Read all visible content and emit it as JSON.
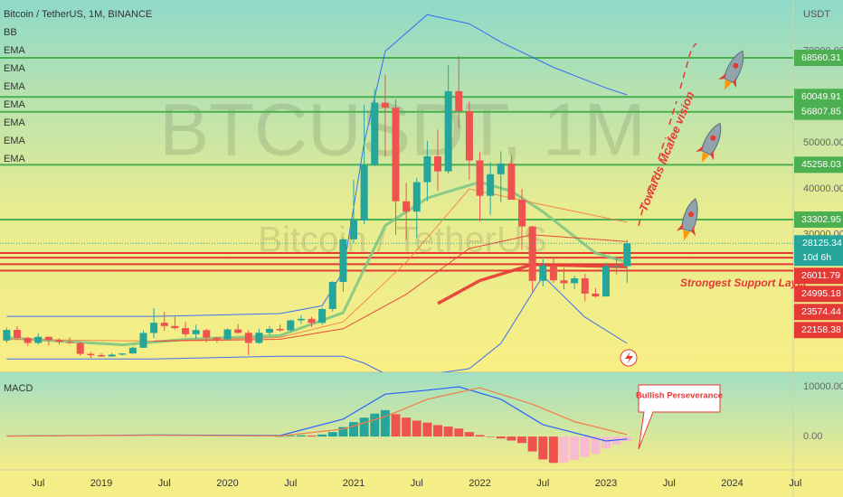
{
  "chart_data": [
    {
      "type": "candlestick",
      "title": "Bitcoin / TetherUS, 1M, BINANCE",
      "legend": [
        "BB",
        "EMA",
        "EMA",
        "EMA",
        "EMA",
        "EMA",
        "EMA",
        "EMA"
      ],
      "watermark": [
        "BTCUSDT, 1M",
        "Bitcoin / TetherUS"
      ],
      "y_unit": "USDT",
      "up_color": "#26a69a",
      "down_color": "#ef5350",
      "x": [
        "2018-04",
        "2018-05",
        "2018-06",
        "2018-07",
        "2018-08",
        "2018-09",
        "2018-10",
        "2018-11",
        "2018-12",
        "2019-01",
        "2019-02",
        "2019-03",
        "2019-04",
        "2019-05",
        "2019-06",
        "2019-07",
        "2019-08",
        "2019-09",
        "2019-10",
        "2019-11",
        "2019-12",
        "2020-01",
        "2020-02",
        "2020-03",
        "2020-04",
        "2020-05",
        "2020-06",
        "2020-07",
        "2020-08",
        "2020-09",
        "2020-10",
        "2020-11",
        "2020-12",
        "2021-01",
        "2021-02",
        "2021-03",
        "2021-04",
        "2021-05",
        "2021-06",
        "2021-07",
        "2021-08",
        "2021-09",
        "2021-10",
        "2021-11",
        "2021-12",
        "2022-01",
        "2022-02",
        "2022-03",
        "2022-04",
        "2022-05",
        "2022-06",
        "2022-07",
        "2022-08",
        "2022-09",
        "2022-10",
        "2022-11",
        "2022-12",
        "2023-01",
        "2023-02",
        "2023-03"
      ],
      "open": [
        6926,
        9245,
        7494,
        6391,
        7729,
        7033,
        6625,
        6371,
        4017,
        3742,
        3457,
        3854,
        4105,
        5350,
        8574,
        10817,
        10085,
        9631,
        8294,
        9199,
        7546,
        7193,
        9350,
        8600,
        6410,
        8625,
        9450,
        9140,
        11335,
        11650,
        10776,
        13800,
        19700,
        28990,
        33100,
        45240,
        58800,
        57700,
        37300,
        35040,
        41460,
        47100,
        43820,
        61300,
        56950,
        46200,
        38480,
        43190,
        45530,
        37630,
        31800,
        19940,
        23290,
        20050,
        19430,
        20490,
        17160,
        16540,
        23120,
        23140
      ],
      "high": [
        9745,
        10020,
        7780,
        8507,
        7760,
        7410,
        7680,
        6600,
        4410,
        4140,
        4200,
        4140,
        5640,
        9100,
        13970,
        13180,
        12330,
        10950,
        10370,
        9510,
        7750,
        9580,
        10500,
        9190,
        9470,
        10070,
        10380,
        11450,
        12470,
        12070,
        14100,
        19860,
        29300,
        41950,
        58350,
        61780,
        64850,
        59500,
        41330,
        42400,
        50500,
        52920,
        67000,
        69000,
        59050,
        47990,
        45820,
        48190,
        47440,
        40050,
        31990,
        24670,
        25210,
        22800,
        21080,
        21480,
        18390,
        23960,
        25250,
        28870
      ],
      "low": [
        6426,
        7035,
        5755,
        6071,
        5880,
        6100,
        6205,
        3652,
        3156,
        3360,
        3350,
        3680,
        4100,
        5330,
        7450,
        9010,
        9320,
        7710,
        7300,
        6515,
        6430,
        6870,
        8440,
        3780,
        6160,
        8110,
        8830,
        8900,
        10520,
        9880,
        10370,
        13200,
        17570,
        28130,
        32300,
        44960,
        47000,
        30000,
        28800,
        29280,
        37330,
        39600,
        43280,
        53250,
        42000,
        32950,
        34320,
        37150,
        37700,
        26700,
        17620,
        18780,
        19520,
        18120,
        18190,
        15480,
        16260,
        16500,
        21350,
        19550
      ],
      "close": [
        9245,
        7494,
        6391,
        7729,
        7033,
        6625,
        6371,
        4017,
        3742,
        3457,
        3854,
        4105,
        5350,
        8574,
        10817,
        10085,
        9631,
        8294,
        9199,
        7546,
        7193,
        9350,
        8600,
        6410,
        8625,
        9450,
        9140,
        11335,
        11650,
        10776,
        13800,
        19700,
        28990,
        33100,
        45240,
        58800,
        57700,
        37300,
        35040,
        41460,
        47100,
        43820,
        61300,
        56950,
        46200,
        38480,
        43190,
        45530,
        37630,
        31800,
        19940,
        23290,
        20050,
        19430,
        20490,
        17160,
        16540,
        23120,
        23140,
        28125
      ],
      "lines": [
        {
          "color": "#2962ff",
          "width": 1,
          "x": [
            "2018-04",
            "2019-06",
            "2020-06",
            "2020-10",
            "2020-12",
            "2021-02",
            "2021-04",
            "2021-08",
            "2021-12",
            "2022-03",
            "2022-08",
            "2023-01",
            "2023-03"
          ],
          "values": [
            12200,
            12200,
            12800,
            14500,
            22000,
            50000,
            70000,
            78000,
            76000,
            72000,
            66500,
            62000,
            60500
          ]
        },
        {
          "color": "#2962ff",
          "width": 1,
          "x": [
            "2018-04",
            "2019-06",
            "2020-06",
            "2020-12",
            "2021-02",
            "2021-05",
            "2021-12",
            "2022-03",
            "2022-07",
            "2022-11",
            "2023-03"
          ],
          "values": [
            2900,
            2900,
            3500,
            3500,
            2000,
            -1500,
            800,
            6300,
            21000,
            12000,
            6300
          ]
        },
        {
          "color": "#81c784",
          "width": 3,
          "x": [
            "2018-04",
            "2019-03",
            "2019-09",
            "2020-06",
            "2020-12",
            "2021-04",
            "2021-08",
            "2022-01",
            "2022-04",
            "2022-07",
            "2022-12",
            "2023-03"
          ],
          "values": [
            7500,
            6000,
            7200,
            8000,
            13000,
            32000,
            38000,
            41500,
            39500,
            35000,
            26000,
            24000
          ]
        },
        {
          "color": "#f57c45",
          "width": 1,
          "x": [
            "2018-04",
            "2019-06",
            "2020-06",
            "2020-12",
            "2021-06",
            "2021-12",
            "2022-06",
            "2023-03"
          ],
          "values": [
            7200,
            6800,
            7600,
            11000,
            24000,
            40000,
            37000,
            32700
          ]
        },
        {
          "color": "#e53935",
          "width": 1,
          "x": [
            "2019-06",
            "2020-06",
            "2020-12",
            "2021-06",
            "2021-12",
            "2022-06",
            "2023-03"
          ],
          "values": [
            6800,
            7200,
            9500,
            17000,
            27000,
            30000,
            28500
          ]
        },
        {
          "color": "#e53935",
          "width": 3.5,
          "x": [
            "2021-09",
            "2022-01",
            "2022-06",
            "2023-03"
          ],
          "values": [
            15000,
            20000,
            23500,
            23000
          ]
        }
      ],
      "xlim": [
        "2018-03",
        "2024-12"
      ],
      "xticks": [
        {
          "value": "2018-07",
          "label": "Jul"
        },
        {
          "value": "2019-01",
          "label": "2019"
        },
        {
          "value": "2019-07",
          "label": "Jul"
        },
        {
          "value": "2020-01",
          "label": "2020"
        },
        {
          "value": "2020-07",
          "label": "Jul"
        },
        {
          "value": "2021-01",
          "label": "2021"
        },
        {
          "value": "2021-07",
          "label": "Jul"
        },
        {
          "value": "2022-01",
          "label": "2022"
        },
        {
          "value": "2022-07",
          "label": "Jul"
        },
        {
          "value": "2023-01",
          "label": "2023"
        },
        {
          "value": "2023-07",
          "label": "Jul"
        },
        {
          "value": "2024-01",
          "label": "2024"
        },
        {
          "value": "2024-07",
          "label": "Jul"
        }
      ],
      "ylim": [
        0,
        80000
      ],
      "yticks": [
        {
          "value": 70000,
          "label": "70000.00"
        },
        {
          "value": 60000,
          "label": "60000.00"
        },
        {
          "value": 50000,
          "label": "50000.00"
        },
        {
          "value": 40000,
          "label": "40000.00"
        },
        {
          "value": 30000,
          "label": "30000.00"
        }
      ],
      "levels": [
        {
          "value": 68560.31,
          "color": "#4caf50"
        },
        {
          "value": 60049.91,
          "color": "#4caf50"
        },
        {
          "value": 56807.85,
          "color": "#4caf50"
        },
        {
          "value": 45258.03,
          "color": "#4caf50"
        },
        {
          "value": 33302.95,
          "color": "#4caf50"
        },
        {
          "value": 26011.79,
          "color": "#e53935"
        },
        {
          "value": 24995.18,
          "color": "#e53935"
        },
        {
          "value": 23574.44,
          "color": "#e53935"
        },
        {
          "value": 22158.38,
          "color": "#e53935"
        }
      ],
      "last_price": {
        "value": 28125.34,
        "countdown": "10d 6h",
        "color": "#26a69a"
      },
      "annotations": {
        "vision": "Towards Mcafee vision",
        "support": "Strongest Support Layer"
      }
    },
    {
      "type": "macd",
      "title": "MACD",
      "note": "Bullish Perseverance",
      "x": [
        "2020-06",
        "2020-07",
        "2020-08",
        "2020-09",
        "2020-10",
        "2020-11",
        "2020-12",
        "2021-01",
        "2021-02",
        "2021-03",
        "2021-04",
        "2021-05",
        "2021-06",
        "2021-07",
        "2021-08",
        "2021-09",
        "2021-10",
        "2021-11",
        "2021-12",
        "2022-01",
        "2022-02",
        "2022-03",
        "2022-04",
        "2022-05",
        "2022-06",
        "2022-07",
        "2022-08",
        "2022-09",
        "2022-10",
        "2022-11",
        "2022-12",
        "2023-01",
        "2023-02",
        "2023-03"
      ],
      "histogram": [
        50,
        150,
        250,
        200,
        400,
        900,
        1900,
        2900,
        3800,
        4600,
        5300,
        4500,
        3800,
        3200,
        2800,
        2300,
        2000,
        1600,
        900,
        300,
        -100,
        -400,
        -800,
        -1300,
        -3000,
        -4600,
        -5300,
        -5200,
        -4700,
        -4100,
        -3500,
        -2400,
        -1600,
        -900
      ],
      "colors": {
        "up_positive": "#26a69a",
        "down_positive": "#ef5350",
        "down_negative": "#ef5350",
        "up_negative": "#f8bbd0"
      },
      "lines": [
        {
          "color": "#2962ff",
          "x": [
            "2018-04",
            "2019-06",
            "2020-06",
            "2020-12",
            "2021-04",
            "2021-08",
            "2021-11",
            "2022-03",
            "2022-07",
            "2023-01",
            "2023-03"
          ],
          "values": [
            100,
            300,
            200,
            3500,
            8500,
            9300,
            10000,
            7500,
            2400,
            -900,
            -500
          ]
        },
        {
          "color": "#f57c45",
          "x": [
            "2018-04",
            "2019-06",
            "2020-06",
            "2020-12",
            "2021-04",
            "2021-08",
            "2022-01",
            "2022-06",
            "2022-10",
            "2023-03"
          ],
          "values": [
            80,
            250,
            100,
            1500,
            4000,
            7500,
            9800,
            6500,
            3000,
            400
          ]
        }
      ],
      "ylim": [
        -6700,
        12900
      ],
      "yticks": [
        {
          "value": 10000,
          "label": "10000.00"
        },
        {
          "value": 0,
          "label": "0.00"
        }
      ]
    }
  ]
}
